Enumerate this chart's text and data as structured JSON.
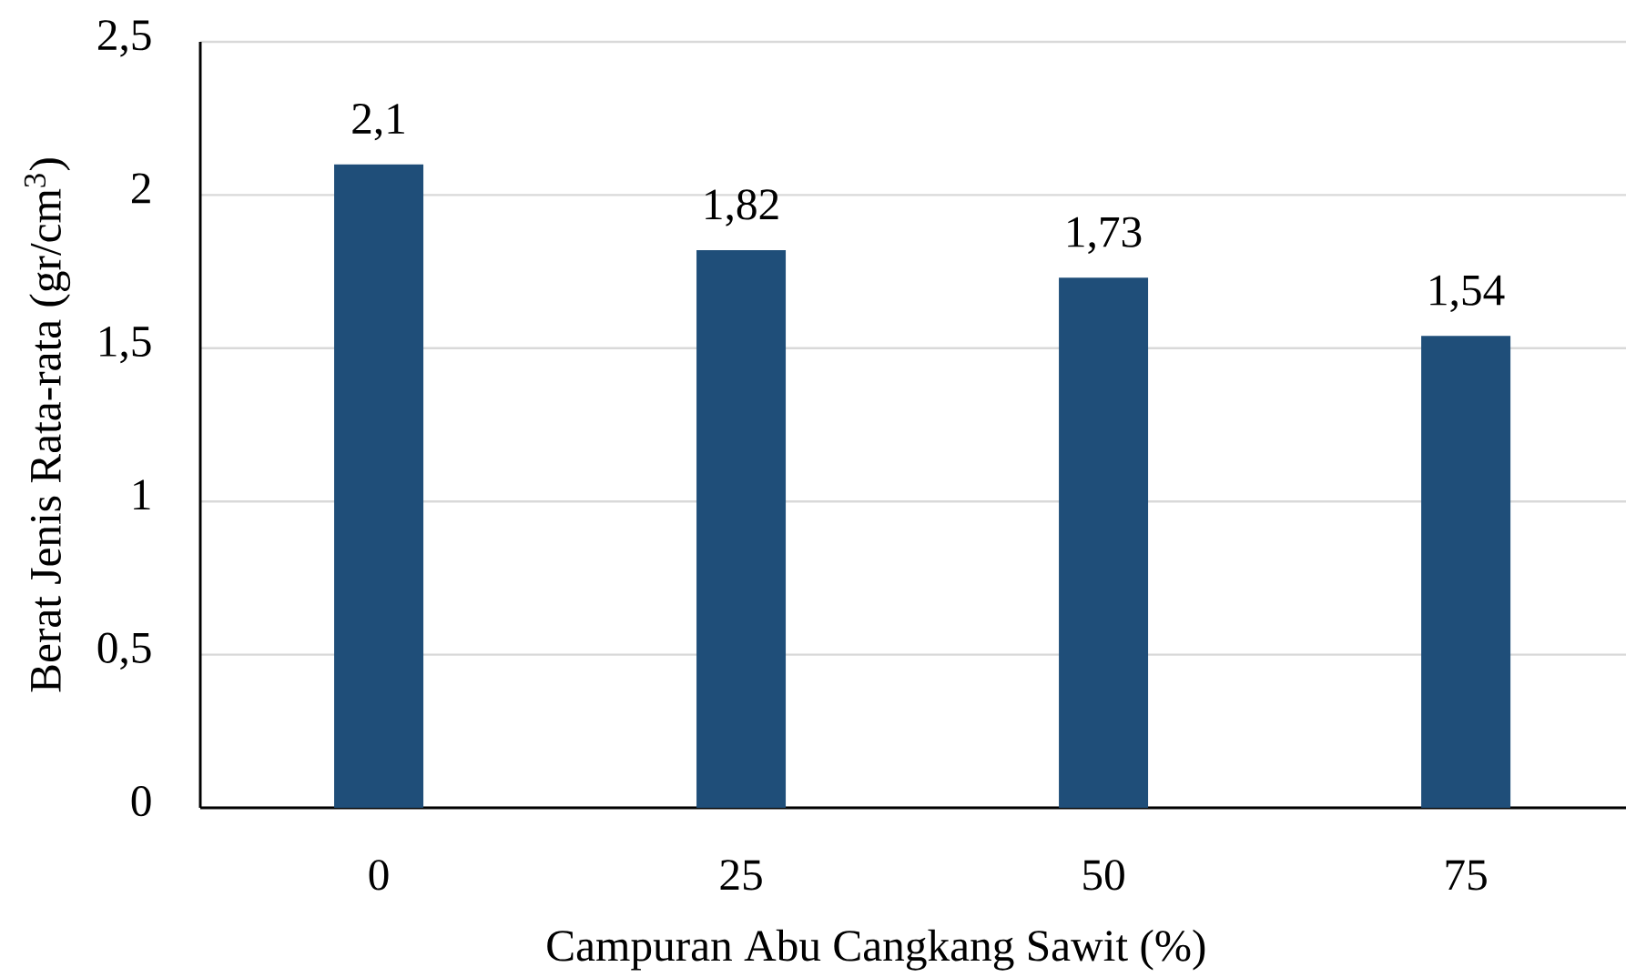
{
  "chart_data": {
    "type": "bar",
    "xlabel": "Campuran Abu Cangkang Sawit (%)",
    "ylabel": "Berat Jenis Rata-rata (gr/cm$^{3}$)",
    "categories": [
      "0",
      "25",
      "50",
      "75"
    ],
    "values": [
      2.1,
      1.82,
      1.73,
      1.54
    ],
    "value_labels": [
      "2,1",
      "1,82",
      "1,73",
      "1,54"
    ],
    "color": "#1f4e79",
    "ylim": [
      0,
      2.5
    ],
    "yticks": [
      0,
      {
        "value": 0.5,
        "label": "0,5"
      },
      1,
      {
        "value": 1.5,
        "label": "1,5"
      },
      2,
      {
        "value": 2.5,
        "label": "2,5"
      }
    ],
    "grid": "y"
  }
}
